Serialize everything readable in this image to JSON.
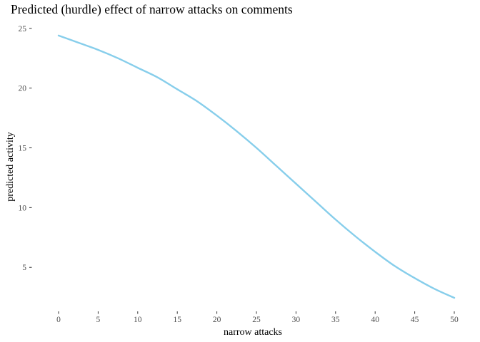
{
  "chart_data": {
    "type": "line",
    "title": "Predicted (hurdle) effect of narrow attacks on comments",
    "xlabel": "narrow attacks",
    "ylabel": "predicted activity",
    "xlim": [
      0,
      50
    ],
    "ylim": [
      2.45,
      24.45
    ],
    "xticks": [
      0,
      5,
      10,
      15,
      20,
      25,
      30,
      35,
      40,
      45,
      50
    ],
    "yticks": [
      5,
      10,
      15,
      20,
      25
    ],
    "grid": false,
    "legend": "none",
    "series": [
      {
        "color": "#87CEEB",
        "x": [
          0,
          2.5,
          5,
          7.5,
          10,
          12.5,
          15,
          17.5,
          20,
          22.5,
          25,
          27.5,
          30,
          32.5,
          35,
          37.5,
          40,
          42.5,
          45,
          47.5,
          50
        ],
        "y": [
          24.4,
          23.8,
          23.2,
          22.5,
          21.7,
          20.9,
          19.9,
          18.9,
          17.7,
          16.4,
          15.0,
          13.5,
          12.0,
          10.5,
          9.0,
          7.6,
          6.3,
          5.1,
          4.1,
          3.2,
          2.45
        ]
      }
    ]
  }
}
